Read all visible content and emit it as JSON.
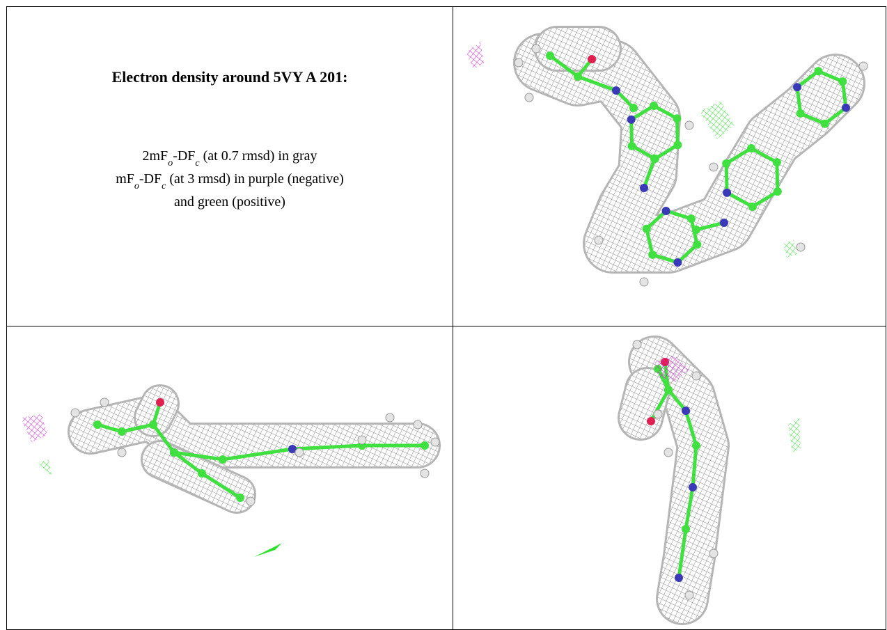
{
  "header": {
    "title": "Electron density around 5VY A 201:"
  },
  "legend": {
    "lines": [
      [
        "2mF",
        "o",
        "-DF",
        "c",
        " (at 0.7 rmsd) in gray"
      ],
      [
        "mF",
        "o",
        "-DF",
        "c",
        " (at 3 rmsd) in purple (negative)"
      ],
      [
        "and green (positive)"
      ]
    ]
  }
}
